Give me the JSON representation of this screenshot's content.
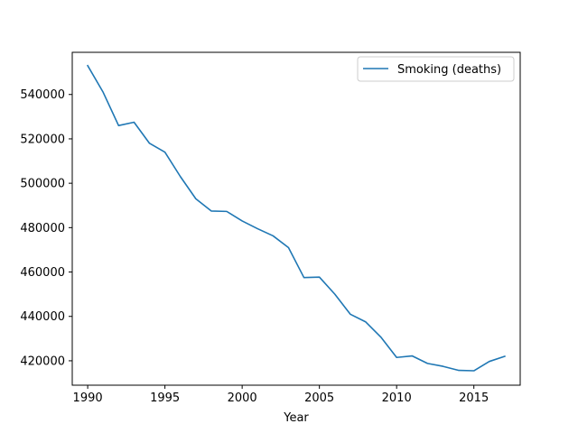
{
  "chart_data": {
    "type": "line",
    "title": "",
    "xlabel": "Year",
    "ylabel": "",
    "xlim": [
      1989,
      2018
    ],
    "ylim": [
      409000,
      559000
    ],
    "x_ticks": [
      1990,
      1995,
      2000,
      2005,
      2010,
      2015
    ],
    "y_ticks": [
      420000,
      440000,
      460000,
      480000,
      500000,
      520000,
      540000
    ],
    "grid": false,
    "legend_position": "top-right",
    "series": [
      {
        "name": "Smoking (deaths)",
        "color": "#1f77b4",
        "x": [
          1990,
          1991,
          1992,
          1993,
          1994,
          1995,
          1996,
          1997,
          1998,
          1999,
          2000,
          2001,
          2002,
          2003,
          2004,
          2005,
          2006,
          2007,
          2008,
          2009,
          2010,
          2011,
          2012,
          2013,
          2014,
          2015,
          2016,
          2017
        ],
        "values": [
          553000,
          541000,
          526000,
          527500,
          518000,
          514000,
          503000,
          493000,
          487500,
          487300,
          483000,
          479500,
          476300,
          471000,
          457500,
          457700,
          450000,
          441000,
          437500,
          430500,
          421500,
          422200,
          418800,
          417500,
          415700,
          415500,
          419700,
          422000
        ]
      }
    ]
  }
}
